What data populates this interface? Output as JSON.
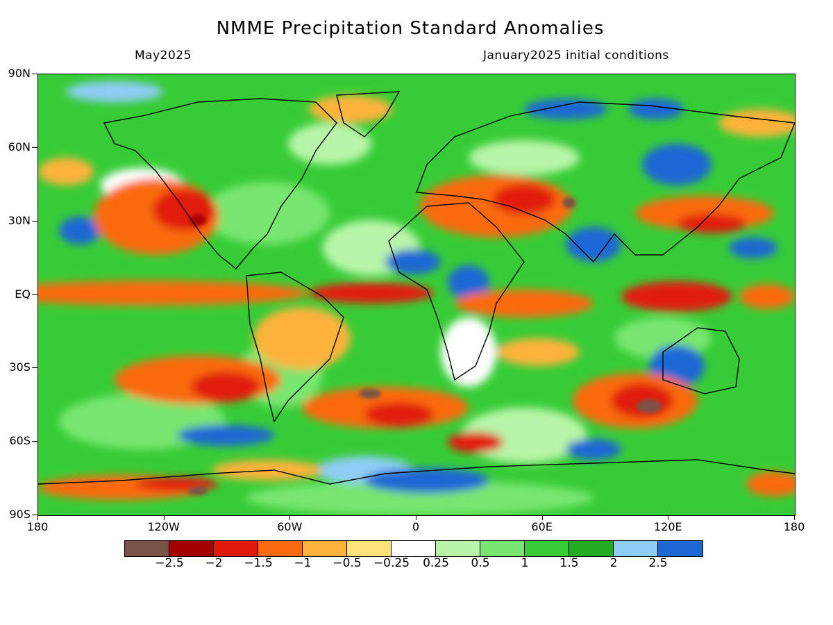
{
  "title": "NMME Precipitation Standard Anomalies",
  "subtitle_left": "May2025",
  "subtitle_right": "January2025 initial conditions",
  "lat_labels": [
    "90N",
    "60N",
    "30N",
    "EQ",
    "30S",
    "60S",
    "90S"
  ],
  "lat_values": [
    90,
    60,
    30,
    0,
    -30,
    -60,
    -90
  ],
  "lon_labels": [
    "180",
    "120W",
    "60W",
    "0",
    "60E",
    "120E",
    "180"
  ],
  "lon_values": [
    -180,
    -120,
    -60,
    0,
    60,
    120,
    180
  ],
  "colorbar": {
    "colors": [
      "#7a5346",
      "#a50000",
      "#e11b0c",
      "#fa6a10",
      "#fdb23a",
      "#fde27a",
      "#ffffff",
      "#b8f5a8",
      "#78e670",
      "#37cc37",
      "#21ab21",
      "#8ecdf6",
      "#1a68d4"
    ],
    "labels": [
      "−2.5",
      "−2",
      "−1.5",
      "−1",
      "−0.5",
      "−0.25",
      "0.25",
      "0.5",
      "1",
      "1.5",
      "2",
      "2.5"
    ]
  }
}
